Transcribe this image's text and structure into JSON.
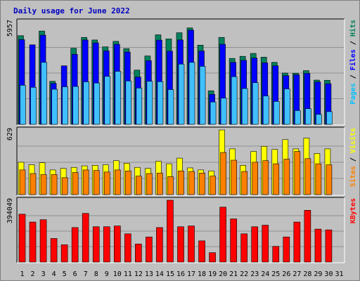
{
  "chart_data": {
    "type": "bar",
    "title": "Daily usage for June 2022",
    "x_labels": [
      "1",
      "2",
      "3",
      "4",
      "5",
      "6",
      "7",
      "8",
      "9",
      "10",
      "11",
      "12",
      "13",
      "14",
      "15",
      "16",
      "17",
      "18",
      "19",
      "20",
      "21",
      "22",
      "23",
      "24",
      "25",
      "26",
      "27",
      "28",
      "29",
      "30",
      "31"
    ],
    "weekend_days": [
      "4",
      "5",
      "11",
      "12",
      "18",
      "19",
      "25",
      "26"
    ],
    "label_colors": {
      "weekday": "#000000",
      "weekend": "#008040"
    },
    "panels": [
      {
        "id": "requests",
        "max_label": "5957",
        "ymax": 5957,
        "legend": [
          {
            "name": "Hits",
            "color": "#00805c"
          },
          {
            "name": "Files",
            "color": "#0000ff"
          },
          {
            "name": "Pages",
            "color": "#00c0ff"
          }
        ],
        "series": [
          {
            "name": "Hits",
            "color": "#00805c",
            "values": [
              5150,
              null,
              5420,
              2500,
              null,
              4420,
              5050,
              4900,
              4500,
              4820,
              4400,
              3150,
              3970,
              5200,
              4960,
              5320,
              5600,
              4600,
              1950,
              5050,
              3830,
              3950,
              4120,
              3900,
              3600,
              2980,
              2970,
              3120,
              2570,
              2560,
              null
            ]
          },
          {
            "name": "Files",
            "color": "#0000ff",
            "values": [
              4920,
              4620,
              5180,
              2380,
              3400,
              4070,
              4900,
              4730,
              4270,
              4650,
              4200,
              2750,
              3700,
              4890,
              4250,
              4900,
              5470,
              4260,
              1740,
              4650,
              3600,
              3720,
              3850,
              3570,
              3400,
              2830,
              2880,
              2960,
              2460,
              2360,
              null
            ]
          },
          {
            "name": "Pages",
            "color": "#40c0ff",
            "values": [
              2270,
              2150,
              3600,
              2040,
              2180,
              2200,
              2470,
              2400,
              2790,
              3080,
              2520,
              2110,
              2500,
              2480,
              2020,
              3500,
              3600,
              3370,
              1300,
              1520,
              2770,
              2080,
              2420,
              1650,
              1330,
              2060,
              800,
              910,
              580,
              740,
              null
            ]
          }
        ]
      },
      {
        "id": "visits",
        "max_label": "629",
        "ymax": 629,
        "legend": [
          {
            "name": "Visits",
            "color": "#ffff00"
          },
          {
            "name": "Sites",
            "color": "#ff8000"
          }
        ],
        "series": [
          {
            "name": "Visits",
            "color": "#ffff00",
            "values": [
              315,
              290,
              310,
              240,
              255,
              265,
              280,
              285,
              290,
              330,
              305,
              265,
              255,
              325,
              300,
              355,
              260,
              240,
              230,
              629,
              445,
              285,
              420,
              470,
              440,
              535,
              445,
              550,
              400,
              445,
              null
            ]
          },
          {
            "name": "Sites",
            "color": "#ff8000",
            "values": [
              240,
              205,
              195,
              195,
              165,
              215,
              240,
              235,
              220,
              240,
              230,
              180,
              205,
              210,
              175,
              230,
              225,
              210,
              180,
              410,
              335,
              225,
              315,
              330,
              300,
              345,
              420,
              350,
              300,
              290,
              null
            ]
          }
        ]
      },
      {
        "id": "kbytes",
        "max_label": "394049",
        "ymax": 394049,
        "legend": [
          {
            "name": "KBytes",
            "color": "#ff0000"
          }
        ],
        "series": [
          {
            "name": "KBytes",
            "color": "#ff0000",
            "values": [
              305000,
              255000,
              270000,
              150000,
              110000,
              220000,
              310000,
              225000,
              225000,
              230000,
              180000,
              115000,
              160000,
              220000,
              394049,
              225000,
              230000,
              135000,
              60000,
              350000,
              275000,
              180000,
              225000,
              235000,
              100000,
              160000,
              255000,
              330000,
              210000,
              205000,
              null
            ]
          }
        ]
      }
    ]
  }
}
